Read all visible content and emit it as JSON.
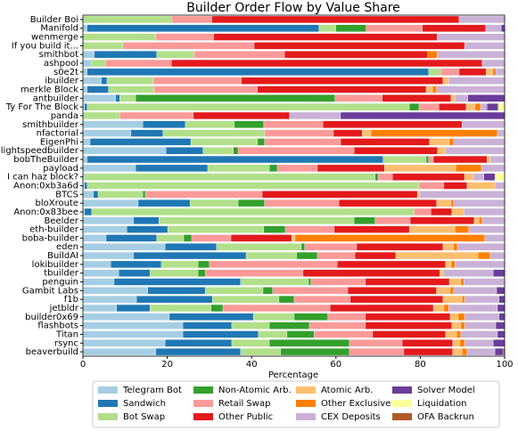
{
  "chart_data": {
    "type": "stacked_barh",
    "title": "Builder Order Flow by Value Share",
    "xlabel": "Percentage",
    "categories": [
      "Builder Boi",
      "Manifold",
      "wenmerge",
      "If you build it...",
      "smithbot",
      "ashpool",
      "s0e2t",
      "ibuilder",
      "merkle Block",
      "antbuilder",
      "Ty For The Block",
      "panda",
      "smithbuilder",
      "nfactorial",
      "EigenPhi",
      "lightspeedbuilder",
      "bobTheBuilder",
      "payload",
      "I can haz block?",
      "Anon:0xb3a6d",
      "BTCS",
      "bloXroute",
      "Anon:0x83bee",
      "Beelder",
      "eth-builder",
      "boba-builder",
      "eden",
      "BuildAI",
      "lokibuilder",
      "tbuilder",
      "penguin",
      "Gambit Labs",
      "f1b",
      "jetbldr",
      "builder0x69",
      "flashbots",
      "Titan",
      "rsync",
      "beaverbuild"
    ],
    "series": [
      {
        "name": "Telegram Bot",
        "color": "#a6cee3",
        "values": [
          0,
          1,
          0,
          0,
          2.7,
          2,
          1,
          4.4,
          1,
          7.8,
          0.4,
          0,
          14.2,
          11.4,
          1.7,
          19.7,
          1,
          12.5,
          0.4,
          0.4,
          2.5,
          13.1,
          0.4,
          12,
          10.4,
          5.5,
          19.5,
          12,
          6.6,
          8.5,
          7.4,
          15.4,
          12.7,
          8,
          20.5,
          23.7,
          23.7,
          19.5,
          17.3
        ]
      },
      {
        "name": "Sandwich",
        "color": "#1f78b4",
        "values": [
          0,
          55,
          0,
          0,
          14.8,
          0,
          81,
          1.3,
          5.1,
          0.9,
          0.6,
          0,
          10.1,
          7.6,
          23.9,
          8.8,
          70.2,
          17.1,
          0,
          0.6,
          1.1,
          12.3,
          1.7,
          6,
          9.7,
          12,
          12.2,
          26.7,
          12,
          7.4,
          30,
          13.6,
          18,
          7.9,
          19.9,
          11.6,
          17.9,
          15.8,
          20.1
        ]
      },
      {
        "name": "Bot Swap",
        "color": "#b2df8a",
        "values": [
          21,
          4,
          17.3,
          9.5,
          8.9,
          3.3,
          2.8,
          11,
          10.8,
          3.8,
          76.4,
          8.7,
          11.6,
          24.1,
          15.8,
          7.2,
          10.2,
          14.6,
          68.9,
          78.7,
          10.6,
          11.4,
          76.5,
          46.3,
          22.8,
          6.4,
          20.1,
          12,
          8.7,
          11.4,
          16.1,
          13.7,
          15.8,
          14.5,
          9.7,
          8.9,
          6.8,
          8.9,
          9.5
        ]
      },
      {
        "name": "Non-Atomic Arb.",
        "color": "#33a02c",
        "values": [
          0,
          7.2,
          0,
          0,
          0,
          0,
          0,
          0,
          0,
          47.3,
          2.3,
          0,
          7,
          0,
          1.7,
          1.1,
          0.6,
          1.9,
          0.7,
          0,
          0.6,
          6.3,
          0,
          5,
          5.1,
          1.9,
          0.8,
          4.9,
          2.7,
          1.7,
          0.6,
          2.3,
          3.6,
          2.8,
          8,
          9.5,
          6.4,
          19,
          16.3
        ]
      },
      {
        "name": "Retail Swap",
        "color": "#fb9a99",
        "values": [
          9.6,
          13.3,
          13.7,
          31.1,
          21.4,
          15.7,
          4.4,
          20.9,
          24.5,
          11.2,
          4.7,
          17.5,
          14,
          16.3,
          18,
          27.5,
          1.1,
          9.5,
          3.4,
          5.9,
          27.7,
          17.6,
          3.9,
          8.3,
          11.6,
          9.3,
          12.3,
          8.9,
          30.3,
          23.2,
          12.9,
          17.8,
          13.3,
          25.4,
          8.9,
          13.3,
          13.9,
          12.5,
          12.9
        ]
      },
      {
        "name": "Other Public",
        "color": "#e31a1c",
        "values": [
          58.6,
          15,
          53,
          49.9,
          34,
          73.7,
          6.4,
          47.8,
          40,
          16.3,
          6.5,
          22.8,
          33,
          6.8,
          21.1,
          19.8,
          12.7,
          15.9,
          17.1,
          5.5,
          36.8,
          23.2,
          5,
          15.2,
          17.8,
          14.4,
          20.5,
          9.7,
          25.7,
          32.4,
          19.9,
          21.1,
          22,
          24.5,
          20.1,
          20.5,
          17.3,
          12,
          11.6
        ]
      },
      {
        "name": "Atomic Arb.",
        "color": "#fdbf6f",
        "values": [
          0,
          0,
          0,
          0,
          0,
          0,
          1.6,
          1.3,
          1.5,
          0.9,
          2.1,
          0,
          0,
          2.1,
          4.7,
          1.9,
          0.8,
          16.9,
          2.1,
          6.6,
          0.6,
          3.4,
          2.8,
          1.1,
          10.8,
          0.8,
          2.5,
          19.5,
          1.3,
          0.8,
          2.7,
          3.2,
          4.5,
          2.5,
          1.9,
          2.1,
          2.6,
          1.7,
          2.2
        ]
      },
      {
        "name": "Other Exclusive",
        "color": "#ff7f00",
        "values": [
          0,
          0,
          0,
          0,
          2.2,
          0,
          0.7,
          0,
          1,
          0,
          1.3,
          0,
          0,
          30,
          1,
          0,
          0,
          6.1,
          0,
          0,
          0,
          0.6,
          0,
          0.8,
          3.3,
          45,
          0.9,
          2.9,
          0.9,
          0,
          0.7,
          0.8,
          0.6,
          1.1,
          1.5,
          0.9,
          1,
          1.1,
          1.2
        ]
      },
      {
        "name": "CEX Deposits",
        "color": "#cab2d6",
        "values": [
          10.8,
          3.7,
          16,
          9.5,
          16,
          5.3,
          2.1,
          13.3,
          16.1,
          3.1,
          1.5,
          12.1,
          10.1,
          1.7,
          12.1,
          14,
          3.4,
          5.5,
          2.5,
          2.3,
          20.1,
          12.1,
          9.7,
          5.3,
          8.5,
          4.7,
          11.2,
          3.4,
          11.8,
          11.9,
          9.7,
          10.2,
          8.2,
          11.6,
          8.2,
          7.4,
          8.7,
          6.8,
          6.6
        ]
      },
      {
        "name": "Solver Model",
        "color": "#6a3d9a",
        "values": [
          0,
          0.8,
          0,
          0,
          0,
          0,
          0,
          0,
          0,
          8.7,
          2.7,
          38.9,
          0,
          0,
          0,
          0,
          0,
          0,
          2.6,
          0,
          0,
          0,
          0,
          0,
          0,
          0,
          0,
          0,
          0,
          2.7,
          0,
          1.9,
          1.3,
          1.7,
          1.3,
          2.1,
          1.7,
          2.7,
          1.9
        ]
      },
      {
        "name": "Liquidation",
        "color": "#ffff99",
        "values": [
          0,
          0,
          0,
          0,
          0,
          0,
          0,
          0,
          0,
          0,
          1.5,
          0,
          0,
          0,
          0,
          0,
          0,
          0,
          2.3,
          0,
          0,
          0,
          0,
          0,
          0,
          0,
          0,
          0,
          0,
          0,
          0,
          0,
          0,
          0,
          0,
          0,
          0,
          0,
          0
        ]
      },
      {
        "name": "OFA Backrun",
        "color": "#b15928",
        "values": [
          0,
          0,
          0,
          0,
          0,
          0,
          0,
          0,
          0,
          0,
          0,
          0,
          0,
          0,
          0,
          0,
          0,
          0,
          0,
          0,
          0,
          0,
          0,
          0,
          0,
          0,
          0,
          0,
          0,
          0,
          0,
          0,
          0,
          0,
          0,
          0,
          0,
          0,
          0.4
        ]
      }
    ],
    "xlim": [
      0,
      100
    ],
    "xticks": [
      0,
      20,
      40,
      60,
      80,
      100
    ],
    "legend": "lower center",
    "legend_columns": 4
  }
}
